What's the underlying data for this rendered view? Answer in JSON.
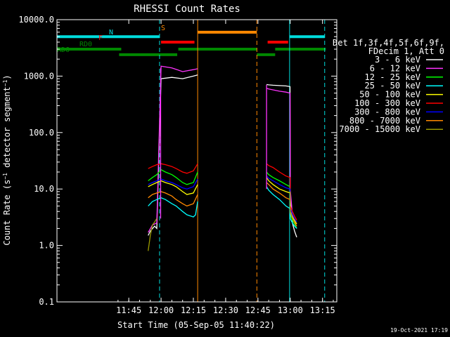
{
  "chart_data": {
    "type": "line",
    "title": "RHESSI Count Rates",
    "xlabel": "Start Time (05-Sep-05 11:40:22)",
    "ylabel": "Count Rate (s⁻¹ detector segment⁻¹)",
    "ylabel_parts": {
      "base": "Count Rate (s",
      "sup1": "−1",
      "mid": " detector segment",
      "sup2": "−1",
      "end": ")"
    },
    "y_scale": "log",
    "ylim": [
      0.1,
      10000
    ],
    "xlim_minutes": [
      11.63,
      16.63
    ],
    "x_ticks": [
      {
        "label": "11:45",
        "minute": 45
      },
      {
        "label": "12:00",
        "minute": 60
      },
      {
        "label": "12:15",
        "minute": 75
      },
      {
        "label": "12:30",
        "minute": 90
      },
      {
        "label": "12:45",
        "minute": 105
      },
      {
        "label": "13:00",
        "minute": 120
      },
      {
        "label": "13:15",
        "minute": 135
      }
    ],
    "y_ticks": [
      {
        "label": "10000.0",
        "value": 10000
      },
      {
        "label": "1000.0",
        "value": 1000
      },
      {
        "label": "100.0",
        "value": 100
      },
      {
        "label": "10.0",
        "value": 10
      },
      {
        "label": "1.0",
        "value": 1
      },
      {
        "label": "0.1",
        "value": 0.1
      }
    ],
    "legend": {
      "header": [
        "Det 1f,3f,4f,5f,6f,9f,",
        "FDecim 1, Att 0"
      ],
      "placement": "right"
    },
    "series": [
      {
        "name": "3 - 6 keV",
        "color": "#ffffff",
        "seg1": {
          "x": [
            54,
            55,
            57,
            58,
            60,
            65,
            70,
            75,
            77
          ],
          "y": [
            1.5,
            1.8,
            2.2,
            2.0,
            900,
            950,
            900,
            1000,
            1050
          ]
        },
        "seg2": {
          "x": [
            109,
            110,
            112,
            115,
            118,
            119.9,
            120,
            121,
            122,
            123
          ],
          "y": [
            710,
            700,
            690,
            680,
            670,
            650,
            8,
            2.5,
            1.8,
            1.4
          ]
        }
      },
      {
        "name": "6 - 12 keV",
        "color": "#ff33ff",
        "seg1": {
          "x": [
            54,
            56,
            58,
            60,
            65,
            70,
            75,
            77
          ],
          "y": [
            1.7,
            2.3,
            2.5,
            1500,
            1400,
            1200,
            1300,
            1350
          ]
        },
        "seg2": {
          "x": [
            109,
            110,
            112,
            115,
            118,
            119.9,
            120,
            121,
            122,
            123
          ],
          "y": [
            610,
            590,
            570,
            540,
            520,
            500,
            10,
            3.5,
            2.5,
            2.0
          ]
        }
      },
      {
        "name": "12 - 25 keV",
        "color": "#00ff00",
        "seg1": {
          "x": [
            54,
            56,
            58,
            60,
            62,
            65,
            67,
            70,
            72,
            75,
            77
          ],
          "y": [
            14,
            16,
            18,
            22,
            20,
            18,
            16,
            13,
            12,
            13,
            20
          ]
        },
        "seg2": {
          "x": [
            109,
            110,
            112,
            115,
            118,
            119.9,
            120,
            121,
            122,
            123
          ],
          "y": [
            20,
            18,
            16,
            14,
            12,
            11,
            3.5,
            2.8,
            2.4,
            2.0
          ]
        }
      },
      {
        "name": "25 - 50 keV",
        "color": "#00ffff",
        "seg1": {
          "x": [
            54,
            56,
            58,
            60,
            62,
            65,
            67,
            70,
            72,
            75,
            76,
            77
          ],
          "y": [
            5,
            6,
            6.5,
            7,
            6.5,
            5.5,
            5,
            4,
            3.5,
            3.2,
            3.5,
            6
          ]
        },
        "seg2": {
          "x": [
            109,
            110,
            112,
            115,
            118,
            119.9,
            120,
            121,
            122,
            123
          ],
          "y": [
            11,
            9.5,
            8,
            6.5,
            5,
            4.5,
            3,
            2.5,
            2.2,
            2.0
          ]
        }
      },
      {
        "name": "50 - 100 keV",
        "color": "#ffff00",
        "seg1": {
          "x": [
            54,
            56,
            58,
            60,
            62,
            65,
            67,
            70,
            72,
            75,
            77
          ],
          "y": [
            11,
            12,
            13,
            14,
            13,
            12,
            11,
            9,
            8,
            8.5,
            12
          ]
        },
        "seg2": {
          "x": [
            109,
            110,
            112,
            115,
            118,
            119.9,
            120,
            121,
            122,
            123
          ],
          "y": [
            16,
            14,
            12,
            10,
            9,
            8.5,
            4,
            3.2,
            2.8,
            2.4
          ]
        }
      },
      {
        "name": "100 - 300 keV",
        "color": "#ff0000",
        "seg1": {
          "x": [
            54,
            56,
            58,
            60,
            62,
            65,
            67,
            70,
            72,
            75,
            77
          ],
          "y": [
            23,
            25,
            27,
            28,
            27,
            25,
            23,
            20,
            19,
            21,
            28
          ]
        },
        "seg2": {
          "x": [
            109,
            110,
            112,
            115,
            118,
            119.9,
            120,
            121,
            122,
            123
          ],
          "y": [
            28,
            26,
            24,
            20,
            17,
            16,
            5,
            4,
            3.3,
            2.8
          ]
        }
      },
      {
        "name": "300 - 800 keV",
        "color": "#0000ff",
        "seg1": {
          "x": [
            54,
            56,
            58,
            60,
            62,
            65,
            67,
            70,
            72,
            75,
            77
          ],
          "y": [
            12,
            13,
            14,
            15,
            14,
            13,
            12,
            10.5,
            10,
            11,
            15
          ]
        },
        "seg2": {
          "x": [
            109,
            110,
            112,
            115,
            118,
            119.9,
            120,
            121,
            122,
            123
          ],
          "y": [
            17,
            15.5,
            14,
            12,
            10.5,
            10,
            4.5,
            3.6,
            3.0,
            2.6
          ]
        }
      },
      {
        "name": "800 - 7000 keV",
        "color": "#ff8800",
        "seg1": {
          "x": [
            54,
            56,
            58,
            60,
            62,
            65,
            67,
            70,
            72,
            75,
            77
          ],
          "y": [
            7,
            8,
            8.5,
            9,
            8.5,
            7.5,
            6.5,
            5.5,
            5,
            5.5,
            8
          ]
        },
        "seg2": {
          "x": [
            109,
            110,
            112,
            115,
            118,
            119.9,
            120,
            121,
            122,
            123
          ],
          "y": [
            13,
            12,
            10,
            8.5,
            7,
            6.5,
            3.8,
            3.0,
            2.6,
            2.2
          ]
        }
      },
      {
        "name": "7000 - 15000 keV",
        "color": "#999900",
        "seg1": {
          "x": [
            54,
            55,
            56,
            57,
            58
          ],
          "y": [
            0.8,
            1.5,
            2.3,
            2.6,
            3.0
          ]
        },
        "seg2": {
          "x": [
            119.9,
            120,
            121,
            122
          ],
          "y": [
            9,
            4,
            3.0,
            2.5
          ]
        }
      }
    ],
    "spikes": [
      {
        "x": 59.8,
        "y_from": 3.0,
        "y_to": 1400,
        "color": "#ff33ff"
      },
      {
        "x": 109.0,
        "y_from": 10,
        "y_to": 700,
        "color": "#ff33ff"
      }
    ],
    "vertical_markers": [
      {
        "x": 11.63,
        "style": "solid",
        "color": "#00dddd"
      },
      {
        "x": 59.3,
        "style": "dashed",
        "color": "#00dddd"
      },
      {
        "x": 77.0,
        "style": "solid",
        "color": "#ff8800"
      },
      {
        "x": 104.5,
        "style": "dashed",
        "color": "#ff8800"
      },
      {
        "x": 119.7,
        "style": "solid",
        "color": "#00dddd"
      },
      {
        "x": 136.0,
        "style": "dashed",
        "color": "#00dddd"
      }
    ],
    "flag_bars": [
      {
        "label": "N",
        "color": "#00dddd",
        "y": 5000,
        "segments": [
          [
            11.63,
            59.3
          ],
          [
            119.7,
            136.0
          ]
        ]
      },
      {
        "label": "S",
        "color": "#ff8800",
        "y": 6000,
        "segments": [
          [
            77.0,
            104.5
          ]
        ]
      },
      {
        "label": "F",
        "color": "#ff0000",
        "y": 4000,
        "segments": [
          [
            60.0,
            75.5
          ],
          [
            109.5,
            119.0
          ]
        ]
      },
      {
        "label": "RD0",
        "color": "#008800",
        "y": 3000,
        "segments": [
          [
            11.63,
            41.5
          ],
          [
            68.0,
            104.5
          ],
          [
            113.0,
            136.5
          ]
        ]
      },
      {
        "label": "RD6",
        "color": "#008800",
        "y": 2400,
        "segments": [
          [
            40.5,
            67.5
          ],
          [
            104.5,
            113.0
          ]
        ]
      }
    ]
  },
  "footer": {
    "timestamp": "19-Oct-2021 17:19"
  }
}
